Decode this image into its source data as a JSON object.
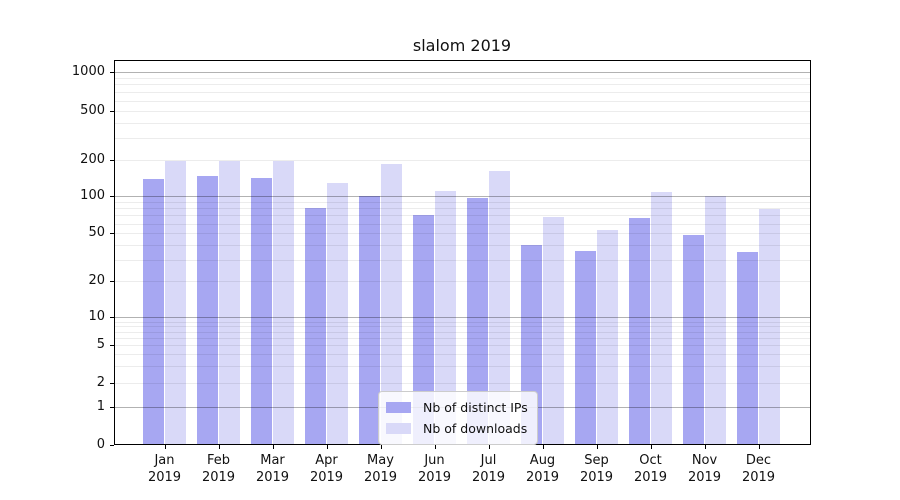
{
  "chart_data": {
    "type": "bar",
    "title": "slalom 2019",
    "categories": [
      "Jan 2019",
      "Feb 2019",
      "Mar 2019",
      "Apr 2019",
      "May 2019",
      "Jun 2019",
      "Jul 2019",
      "Aug 2019",
      "Sep 2019",
      "Oct 2019",
      "Nov 2019",
      "Dec 2019"
    ],
    "x_tick_months": [
      "Jan",
      "Feb",
      "Mar",
      "Apr",
      "May",
      "Jun",
      "Jul",
      "Aug",
      "Sep",
      "Oct",
      "Nov",
      "Dec"
    ],
    "x_tick_year": "2019",
    "series": [
      {
        "name": "Nb of distinct IPs",
        "color": "#a7a7f2",
        "values": [
          139,
          148,
          143,
          80,
          100,
          70,
          97,
          40,
          36,
          67,
          48,
          35
        ]
      },
      {
        "name": "Nb of downloads",
        "color": "#d9d9f8",
        "values": [
          196,
          196,
          196,
          128,
          184,
          111,
          163,
          68,
          53,
          109,
          100,
          79
        ]
      }
    ],
    "yscale": "log-like with 0 baseline",
    "y_tick_labels": [
      "1000",
      "500",
      "200",
      "100",
      "50",
      "20",
      "10",
      "5",
      "2",
      "1",
      "0"
    ],
    "y_tick_values": [
      1000,
      500,
      200,
      100,
      50,
      20,
      10,
      5,
      2,
      1,
      0
    ],
    "ylim": [
      0,
      1240
    ],
    "grid": "both (major dark at 1,10,100,1000; light minors), drawn above bars",
    "legend_position": "inside lower-center",
    "colors": {
      "background": "#ffffff",
      "axis_frame": "#000000",
      "major_grid": "#b3b3b3",
      "minor_grid": "#ececec",
      "legend_border": "#cccccc"
    }
  }
}
